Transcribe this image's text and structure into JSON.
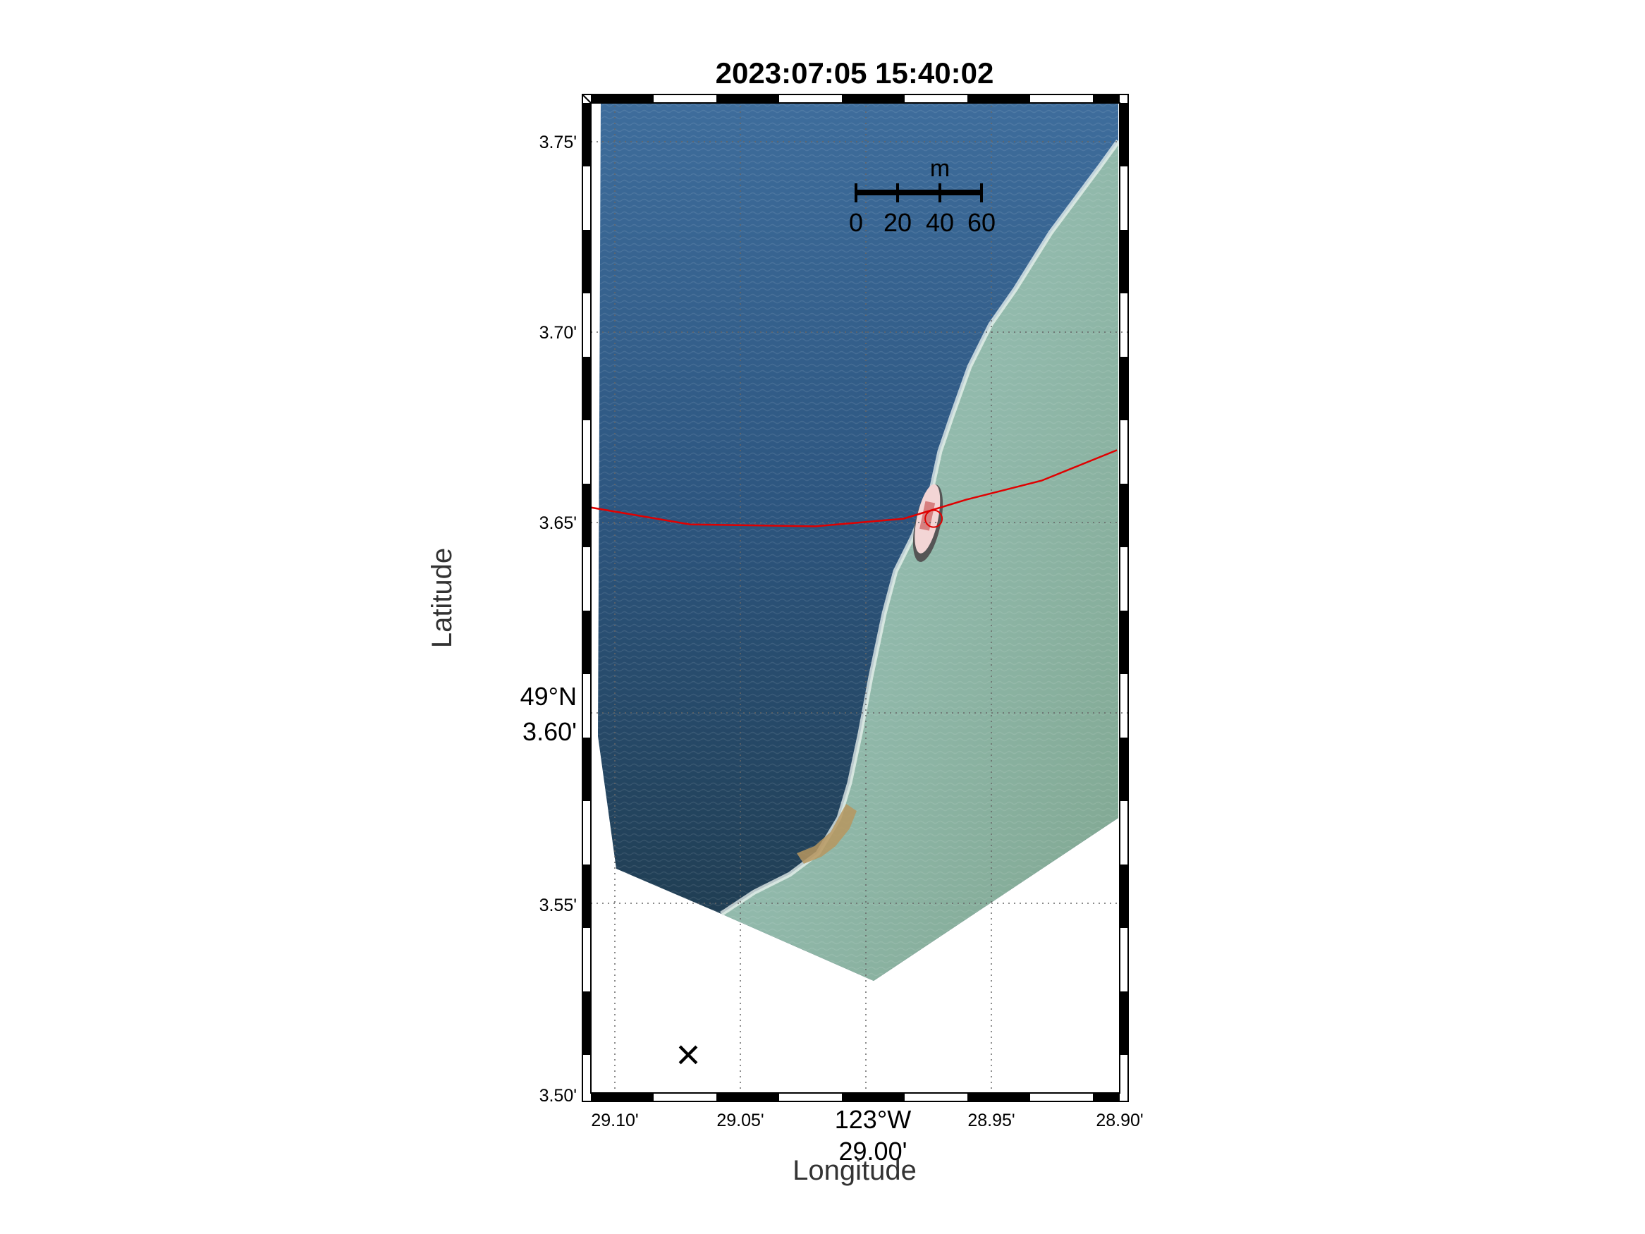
{
  "title": "2023:07:05 15:40:02",
  "axes": {
    "xlabel": "Longitude",
    "ylabel": "Latitude",
    "xticks": [
      "29.10'",
      "29.05'",
      "29.00'",
      "28.95'",
      "28.90'"
    ],
    "yticks": [
      "3.75'",
      "3.70'",
      "3.65'",
      "3.60'",
      "3.55'",
      "3.50'"
    ],
    "x_degree_label": "123°W",
    "y_degree_label": "49°N"
  },
  "scalebar": {
    "unit": "m",
    "labels": [
      "0",
      "20",
      "40",
      "60"
    ]
  },
  "marker": "×",
  "colors": {
    "deep_water": "#2f5a86",
    "shallow_water": "#8fb7a9",
    "track": "#e00000",
    "frame_dark": "#000000",
    "frame_light": "#ffffff"
  },
  "chart_data": {
    "type": "map",
    "title": "2023:07:05 15:40:02",
    "xlabel": "Longitude",
    "ylabel": "Latitude",
    "x_range_minutes": [
      29.11,
      28.9
    ],
    "y_range_minutes": [
      3.5,
      3.76
    ],
    "track": {
      "x": [
        29.11,
        29.07,
        29.02,
        28.985,
        28.96,
        28.93,
        28.9
      ],
      "y": [
        3.654,
        3.6495,
        3.649,
        3.651,
        3.656,
        3.661,
        3.669
      ]
    },
    "vessel_position": {
      "x": 28.973,
      "y": 3.651
    },
    "scalebar_m": [
      0,
      20,
      40,
      60
    ],
    "grid": true
  }
}
